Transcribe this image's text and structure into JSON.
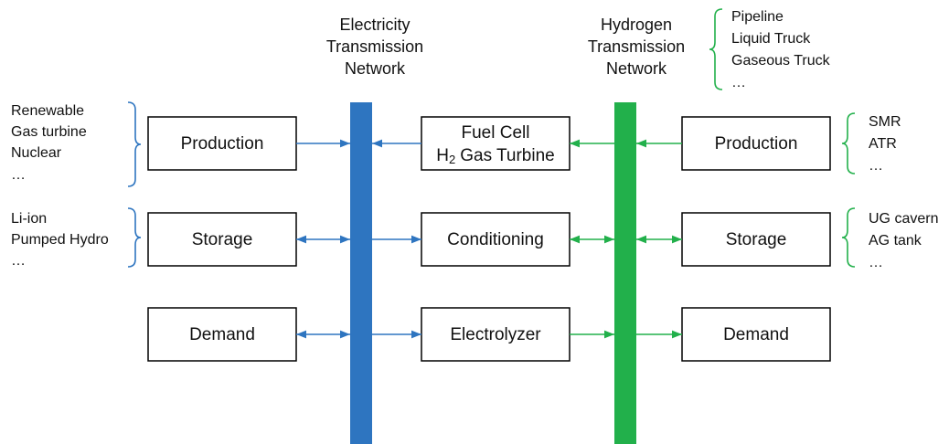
{
  "electricity_network": {
    "title_lines": [
      "Electricity",
      "Transmission",
      "Network"
    ]
  },
  "hydrogen_network": {
    "title_lines": [
      "Hydrogen",
      "Transmission",
      "Network"
    ]
  },
  "hydrogen_transport_list": [
    "Pipeline",
    "Liquid Truck",
    "Gaseous Truck",
    "…"
  ],
  "electricity_production_list": [
    "Renewable",
    "Gas turbine",
    "Nuclear",
    "…"
  ],
  "electricity_storage_list": [
    "Li-ion",
    "Pumped Hydro",
    "…"
  ],
  "hydrogen_production_list": [
    "SMR",
    "ATR",
    "…"
  ],
  "hydrogen_storage_list": [
    "UG cavern",
    "AG tank",
    "…"
  ],
  "electricity_boxes": [
    "Production",
    "Storage",
    "Demand"
  ],
  "conversion_boxes": {
    "fuel_cell": {
      "line1": "Fuel Cell",
      "line2_base": "H",
      "line2_sub": "2",
      "line2_rest": "Gas Turbine"
    },
    "conditioning": "Conditioning",
    "electrolyzer": "Electrolyzer"
  },
  "hydrogen_boxes": [
    "Production",
    "Storage",
    "Demand"
  ]
}
